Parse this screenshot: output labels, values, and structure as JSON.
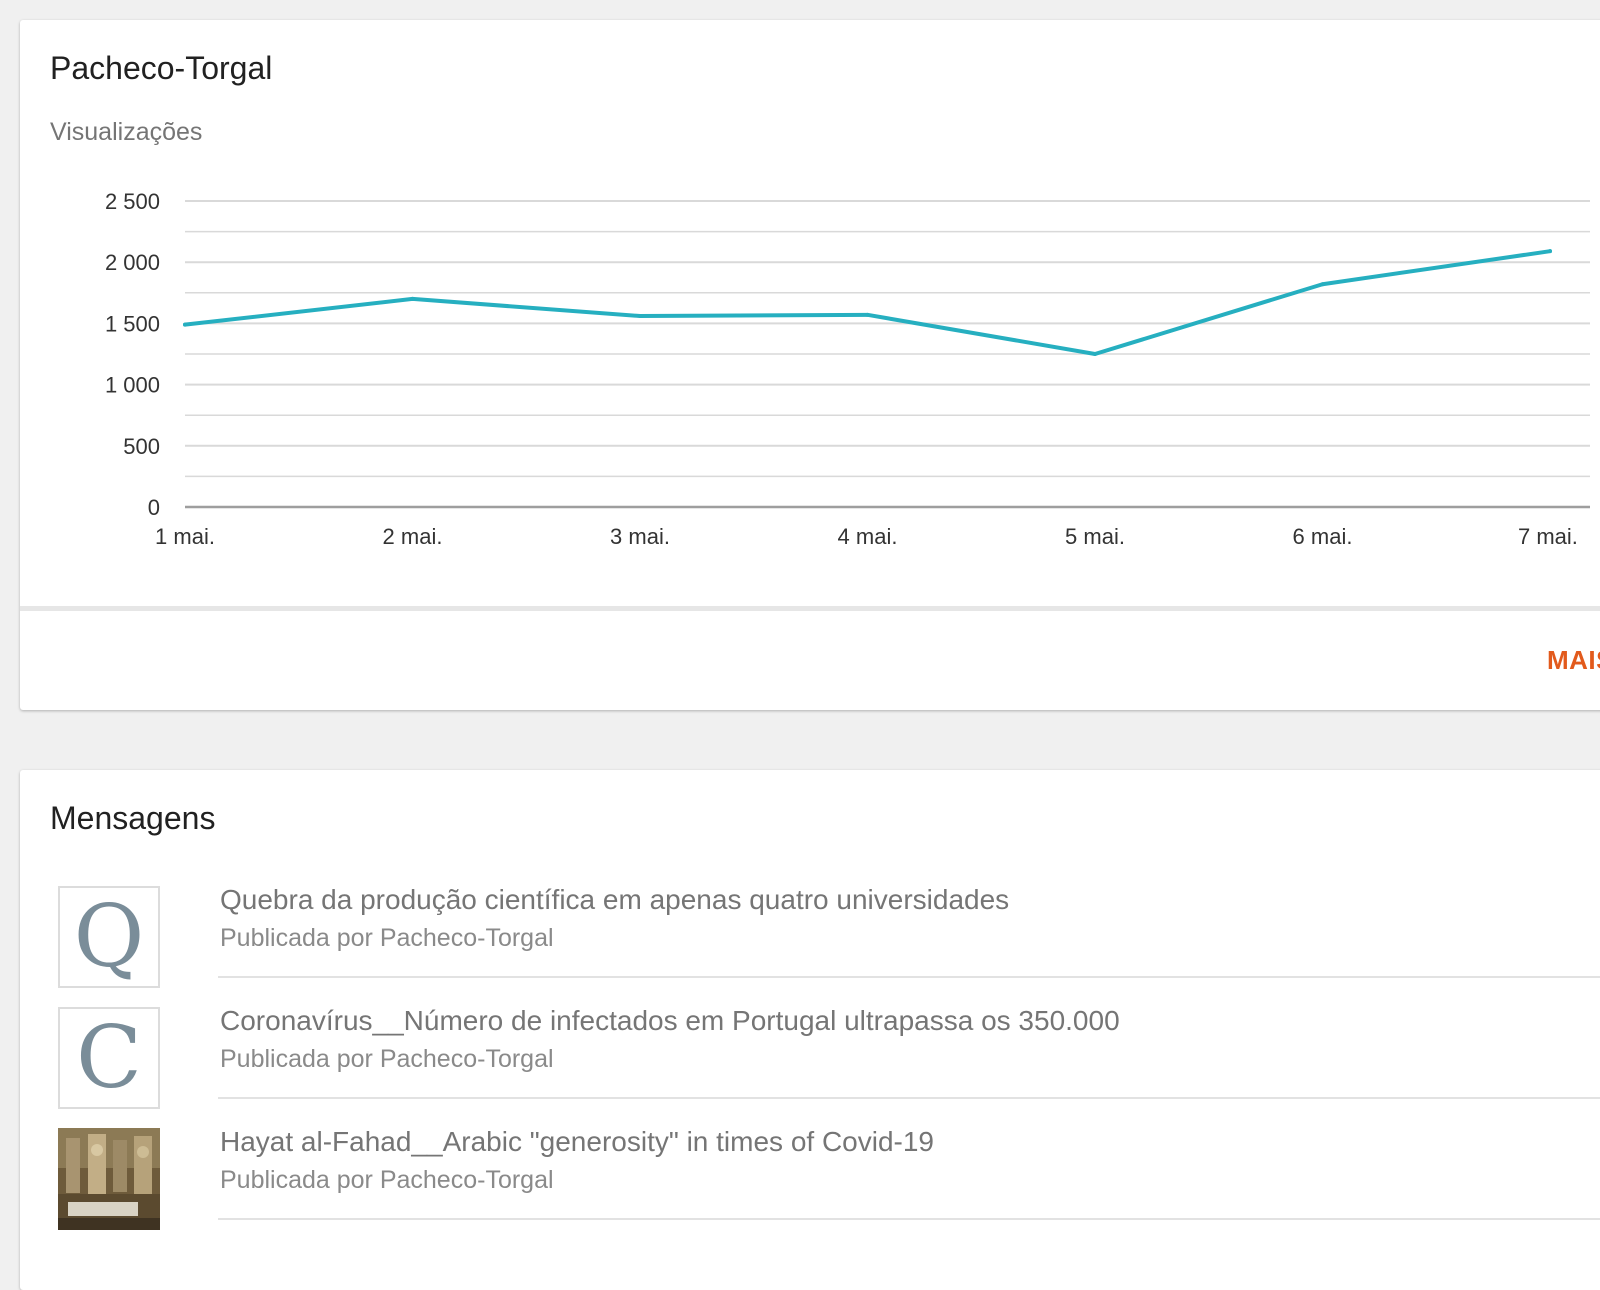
{
  "stats": {
    "title": "Pacheco-Torgal",
    "subtitle": "Visualizações",
    "more_label": "MAIS"
  },
  "chart_data": {
    "type": "line",
    "title": "",
    "xlabel": "",
    "ylabel": "",
    "x": [
      "1 mai.",
      "2 mai.",
      "3 mai.",
      "4 mai.",
      "5 mai.",
      "6 mai.",
      "7 mai."
    ],
    "y_ticks": [
      0,
      500,
      1000,
      1500,
      2000,
      2500
    ],
    "y_tick_labels": [
      "0",
      "500",
      "1 000",
      "1 500",
      "2 000",
      "2 500"
    ],
    "ylim": [
      0,
      2500
    ],
    "grid": true,
    "series": [
      {
        "values": [
          1490,
          1700,
          1560,
          1570,
          1250,
          1820,
          2090
        ]
      }
    ],
    "colors": {
      "line": "#26afc0",
      "grid": "#d9d9d9",
      "axis": "#9e9e9e"
    }
  },
  "posts": {
    "title": "Mensagens",
    "items": [
      {
        "thumb_letter": "Q",
        "title": "Quebra da produção científica em apenas quatro universidades",
        "byline": "Publicada por Pacheco-Torgal"
      },
      {
        "thumb_letter": "C",
        "title": "Coronavírus__Número de infectados em Portugal ultrapassa os 350.000",
        "byline": "Publicada por Pacheco-Torgal"
      },
      {
        "thumb_letter": "",
        "title": "Hayat al-Fahad__Arabic \"generosity\" in times of Covid-19",
        "byline": "Publicada por Pacheco-Torgal"
      }
    ]
  }
}
